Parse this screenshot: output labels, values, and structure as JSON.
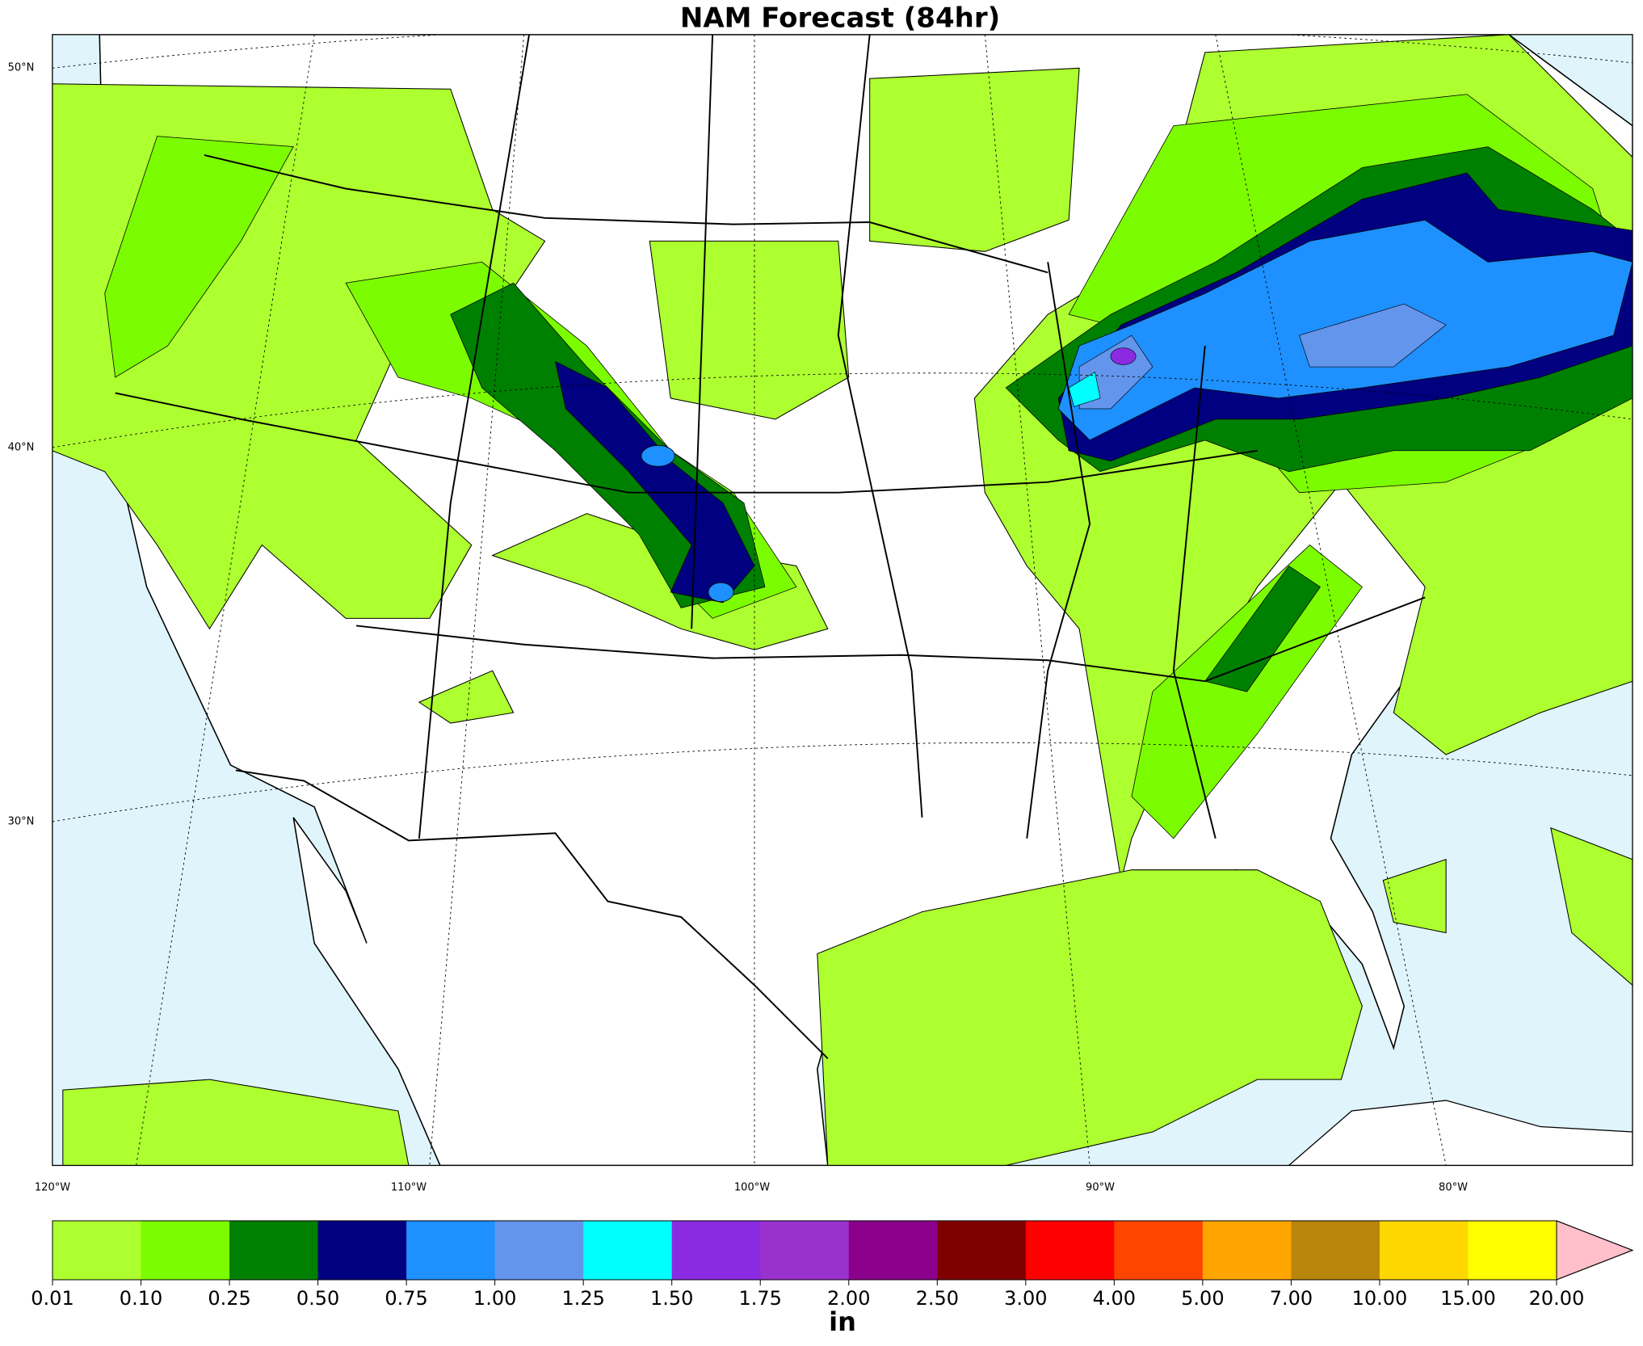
{
  "title": "NAM Forecast (84hr)",
  "map": {
    "lat_labels": [
      "50°N",
      "40°N",
      "30°N"
    ],
    "lon_labels": [
      "120°W",
      "110°W",
      "100°W",
      "90°W",
      "80°W"
    ]
  },
  "colorbar": {
    "bounds": [
      0.01,
      {
        "value": 0.1,
        "label": "0.10"
      },
      0.25,
      {
        "value": 0.5,
        "label": "0.50"
      },
      0.75,
      {
        "value": 1,
        "label": "1.00"
      },
      1.25,
      {
        "value": 1.5,
        "label": "1.50"
      },
      1.75,
      {
        "value": 2,
        "label": "2.00"
      },
      {
        "value": 2.5,
        "label": "2.50"
      },
      {
        "value": 3,
        "label": "3.00"
      },
      {
        "value": 4,
        "label": "4.00"
      },
      {
        "value": 5,
        "label": "5.00"
      },
      {
        "value": 7,
        "label": "7.00"
      },
      {
        "value": 10,
        "label": "10.00"
      },
      {
        "value": 15,
        "label": "15.00"
      },
      {
        "value": 20,
        "label": "20.00"
      }
    ],
    "colors": [
      "#adff2f",
      "#7cfc00",
      "#008000",
      "#000080",
      "#1e90ff",
      "#6495ed",
      "#00ffff",
      "#8a2be2",
      "#9932cc",
      "#8b008b",
      "#800000",
      "#ff0000",
      "#ff4500",
      "#ffa500",
      "#b8860b",
      "#ffd700",
      "#ffff00"
    ],
    "extend_color": "#ffc0cb",
    "unit": "in"
  }
}
